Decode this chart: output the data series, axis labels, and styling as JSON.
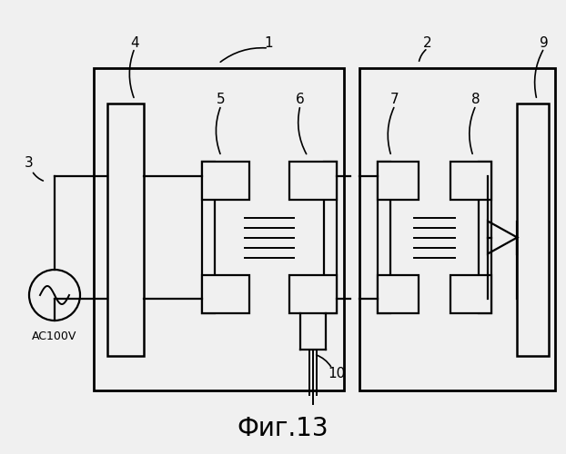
{
  "title": "Фиг.13",
  "bg_color": "#f0f0f0",
  "line_color": "#000000",
  "lw": 1.6,
  "fig_width": 6.22,
  "fig_height": 5.0
}
